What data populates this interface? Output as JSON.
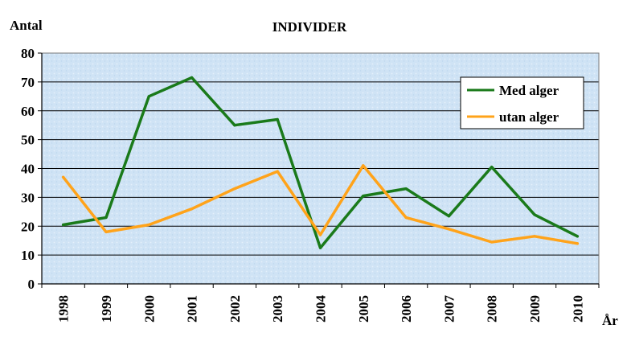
{
  "chart_data": {
    "type": "line",
    "title": "INDIVIDER",
    "ylabel": "Antal",
    "xlabel": "År",
    "ylim": [
      0,
      80
    ],
    "yticks": [
      0,
      10,
      20,
      30,
      40,
      50,
      60,
      70,
      80
    ],
    "categories": [
      "1998",
      "1999",
      "2000",
      "2001",
      "2002",
      "2003",
      "2004",
      "2005",
      "2006",
      "2007",
      "2008",
      "2009",
      "2010"
    ],
    "grid": true,
    "legend_position": "top-right",
    "series": [
      {
        "name": "Med alger",
        "color": "#1a7a1a",
        "values": [
          20.5,
          23,
          65,
          71.5,
          55,
          57,
          12.5,
          30.5,
          33,
          23.5,
          40.5,
          24,
          16.5
        ]
      },
      {
        "name": "utan alger",
        "color": "#ffa31a",
        "values": [
          37,
          18,
          20.5,
          26,
          33,
          39,
          17,
          41,
          23,
          19,
          14.5,
          16.5,
          14
        ]
      }
    ]
  }
}
